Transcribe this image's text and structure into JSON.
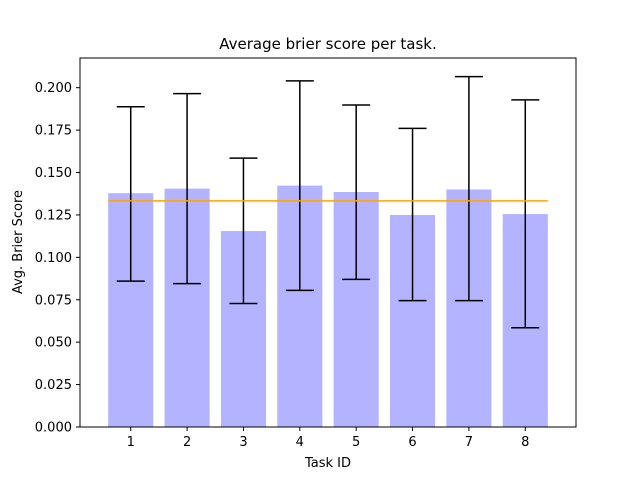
{
  "chart_data": {
    "type": "bar",
    "title": "Average brier score per task.",
    "xlabel": "Task ID",
    "ylabel": "Avg. Brier Score",
    "categories": [
      "1",
      "2",
      "3",
      "4",
      "5",
      "6",
      "7",
      "8"
    ],
    "values": [
      0.1378,
      0.1405,
      0.1155,
      0.1423,
      0.1385,
      0.125,
      0.14,
      0.1255
    ],
    "error_low": [
      0.086,
      0.0845,
      0.0728,
      0.0805,
      0.087,
      0.0745,
      0.0745,
      0.0585
    ],
    "error_high": [
      0.1888,
      0.1965,
      0.1585,
      0.204,
      0.1898,
      0.176,
      0.2065,
      0.1928
    ],
    "reference_line": 0.1333,
    "ylim": [
      0,
      0.2175
    ],
    "yticks": [
      "0.000",
      "0.025",
      "0.050",
      "0.075",
      "0.100",
      "0.125",
      "0.150",
      "0.175",
      "0.200"
    ],
    "ytick_values": [
      0,
      0.025,
      0.05,
      0.075,
      0.1,
      0.125,
      0.15,
      0.175,
      0.2
    ],
    "grid": false,
    "colors": {
      "bar": "#b3b3ff",
      "error_bar": "#000000",
      "reference_line": "#ffa500"
    }
  }
}
